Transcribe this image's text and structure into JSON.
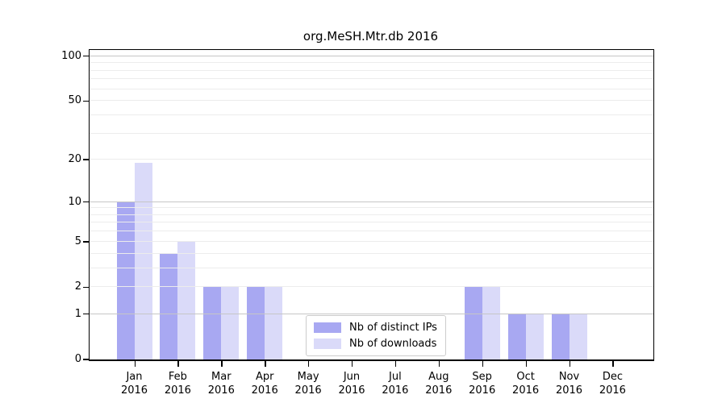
{
  "title": "org.MeSH.Mtr.db 2016",
  "chart_data": {
    "type": "bar",
    "title": "org.MeSH.Mtr.db 2016",
    "categories": [
      "Jan",
      "Feb",
      "Mar",
      "Apr",
      "May",
      "Jun",
      "Jul",
      "Aug",
      "Sep",
      "Oct",
      "Nov",
      "Dec"
    ],
    "category_year": "2016",
    "series": [
      {
        "name": "Nb of distinct IPs",
        "color": "#a8a8f2",
        "values": [
          10,
          4,
          2,
          2,
          0,
          0,
          0,
          0,
          2,
          1,
          1,
          0
        ]
      },
      {
        "name": "Nb of downloads",
        "color": "#dadaf9",
        "values": [
          19,
          5,
          2,
          2,
          0,
          0,
          0,
          0,
          2,
          1,
          1,
          0
        ]
      }
    ],
    "yscale": "log1p",
    "ylim": [
      0,
      110
    ],
    "yticks": [
      0,
      1,
      2,
      5,
      10,
      20,
      50,
      100
    ],
    "grid_major": [
      1,
      10,
      100
    ],
    "grid_minor": [
      2,
      3,
      4,
      5,
      6,
      7,
      8,
      9,
      20,
      30,
      40,
      50,
      60,
      70,
      80,
      90
    ],
    "grid": true,
    "legend_position": "lower center inside",
    "xlabel": "",
    "ylabel": ""
  },
  "legend": {
    "items": [
      {
        "label": "Nb of distinct IPs",
        "swatch_color": "#a8a8f2"
      },
      {
        "label": "Nb of downloads",
        "swatch_color": "#dadaf9"
      }
    ]
  },
  "colors": {
    "grid_major": "#c6c6c6",
    "grid_minor": "#ececec",
    "spine": "#000000",
    "text": "#000000",
    "background": "#ffffff"
  }
}
